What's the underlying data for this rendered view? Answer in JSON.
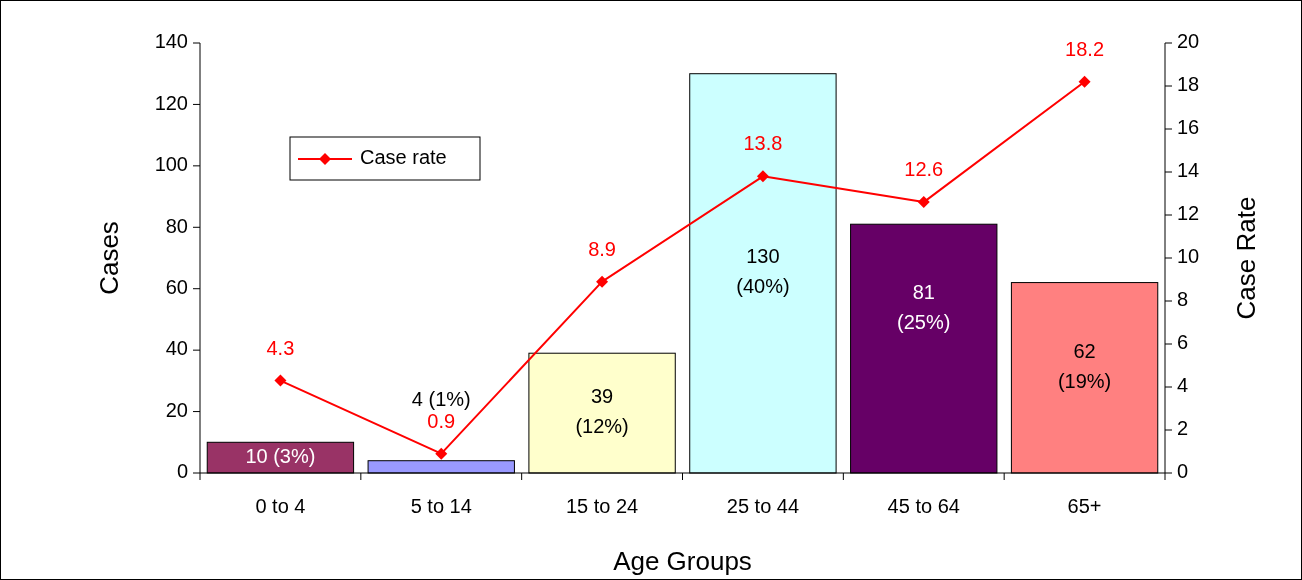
{
  "chart_data": {
    "type": "bar",
    "xlabel": "Age Groups",
    "ylabel": "Cases",
    "y2label": "Case Rate",
    "categories": [
      "0 to 4",
      "5 to 14",
      "15 to 24",
      "25 to 44",
      "45 to 64",
      "65+"
    ],
    "series": [
      {
        "values": [
          10,
          4,
          39,
          130,
          81,
          62
        ],
        "colors": [
          "#993366",
          "#9999ff",
          "#ffffcc",
          "#ccffff",
          "#660066",
          "#ff8080"
        ],
        "value_labels": [
          "10 (3%)",
          "4 (1%)",
          "39\n(12%)",
          "130\n(40%)",
          "81\n(25%)",
          "62\n(19%)"
        ]
      },
      {
        "type": "line",
        "name": "Case rate",
        "axis": "y2",
        "color": "#ff0000",
        "values": [
          4.3,
          0.9,
          8.9,
          13.8,
          12.6,
          18.2
        ],
        "marker": "diamond",
        "data_labels": true
      }
    ],
    "ylim": [
      0,
      140
    ],
    "yticks": [
      0,
      20,
      40,
      60,
      80,
      100,
      120,
      140
    ],
    "y2lim": [
      0,
      20
    ],
    "y2ticks": [
      0,
      2,
      4,
      6,
      8,
      10,
      12,
      14,
      16,
      18,
      20
    ],
    "legend": "top left",
    "grid": false
  }
}
